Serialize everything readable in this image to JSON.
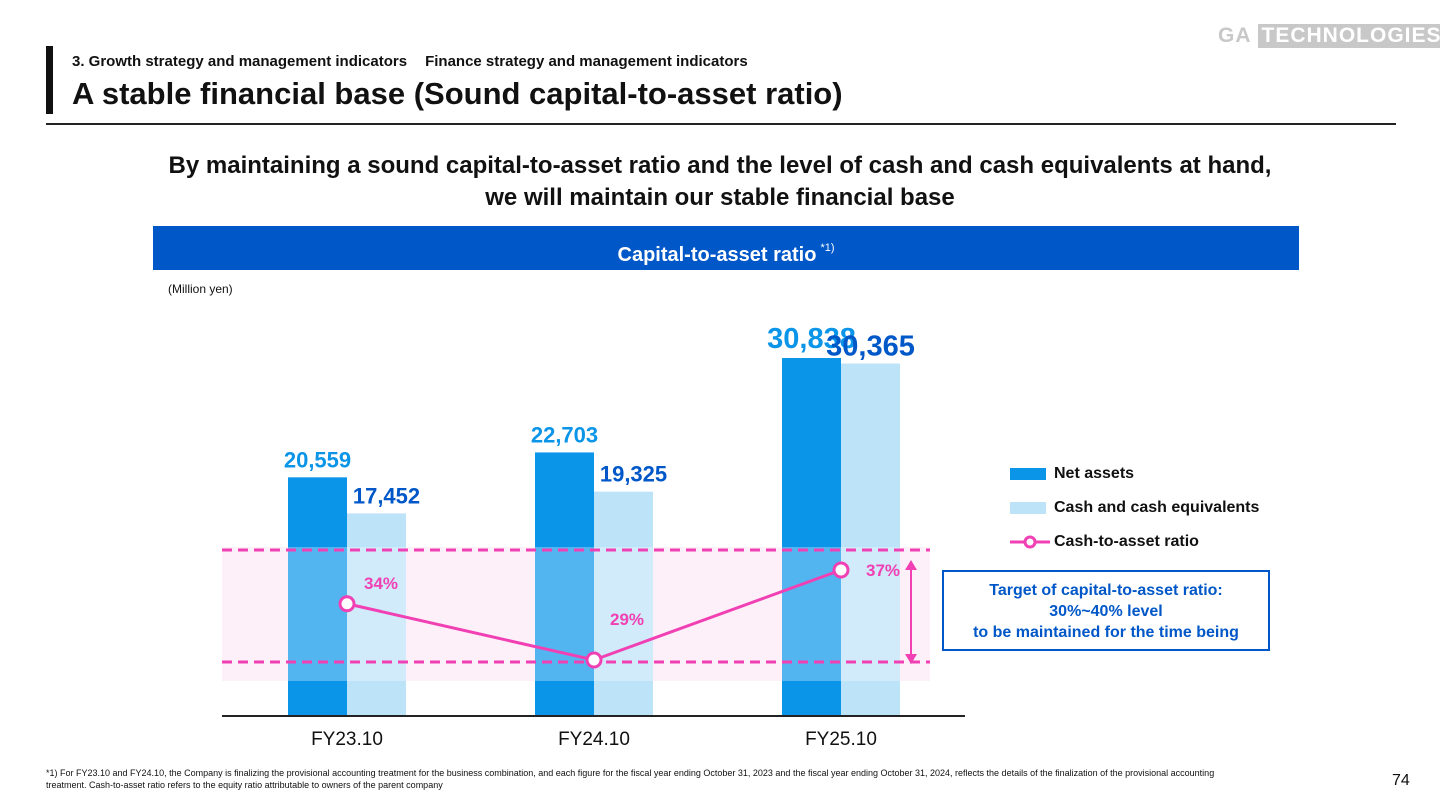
{
  "header": {
    "breadcrumb": [
      "3. Growth strategy and management indicators",
      "Finance strategy and management indicators"
    ],
    "title": "A stable financial base (Sound capital-to-asset ratio)",
    "logo": "GA TECHNOLOGIES"
  },
  "subtitle": [
    "By maintaining a sound capital-to-asset ratio and the level of cash and cash equivalents at hand,",
    "we will maintain our stable financial base"
  ],
  "banner": {
    "title": "Capital-to-asset ratio",
    "note": "*1)"
  },
  "target_box": [
    "Target of capital-to-asset ratio:",
    "30%~40% level",
    "to be maintained for the time being"
  ],
  "colors": {
    "net_assets": "#0a95e8",
    "cash": "#bde3f8",
    "ratio": "#f040b4",
    "target_band": "#fdeaf6",
    "brand": "#0057c8"
  },
  "chart_data": {
    "type": "bar+line",
    "unit_label": "(Million yen)",
    "categories": [
      "FY23.10",
      "FY24.10",
      "FY25.10"
    ],
    "series": [
      {
        "name": "Net assets",
        "type": "bar",
        "values": [
          20559,
          22703,
          30838
        ],
        "labels": [
          "20,559",
          "22,703",
          "30,838"
        ]
      },
      {
        "name": "Cash and cash equivalents",
        "type": "bar",
        "values": [
          17452,
          19325,
          30365
        ],
        "labels": [
          "17,452",
          "19,325",
          "30,365"
        ]
      },
      {
        "name": "Cash-to-asset ratio",
        "type": "line",
        "values": [
          34,
          29,
          37
        ],
        "labels": [
          "34%",
          "29%",
          "37%"
        ]
      }
    ],
    "target_range": [
      30,
      40
    ],
    "grid": false
  },
  "footnote": [
    "*1) For FY23.10 and FY24.10, the Company is finalizing the provisional accounting treatment for the business combination, and each figure for the fiscal year ending October 31, 2023 and the fiscal year ending October 31, 2024, reflects the details of the finalization of the provisional accounting",
    "treatment. Cash-to-asset ratio refers to the equity ratio attributable to owners of the parent company"
  ],
  "page_number": "74"
}
